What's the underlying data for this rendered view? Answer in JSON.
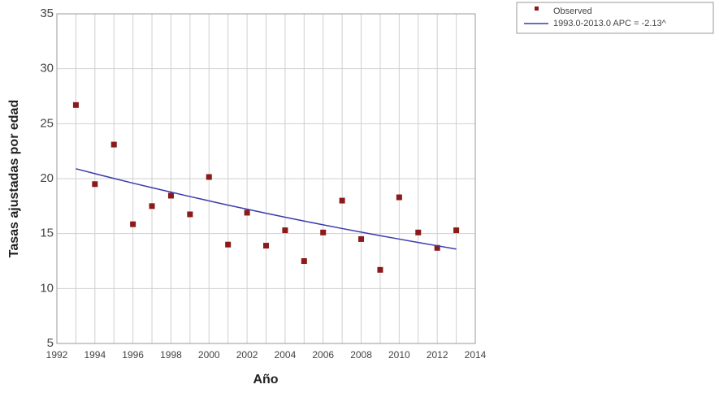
{
  "chart_data": {
    "type": "scatter",
    "xlabel": "Año",
    "ylabel": "Tasas ajustadas por edad",
    "x": [
      1993,
      1994,
      1995,
      1996,
      1997,
      1998,
      1999,
      2000,
      2001,
      2002,
      2003,
      2004,
      2005,
      2006,
      2007,
      2008,
      2009,
      2010,
      2011,
      2012,
      2013
    ],
    "series": [
      {
        "name": "Observed",
        "color": "#8b1a1a",
        "mode": "markers",
        "values": [
          26.7,
          19.5,
          23.1,
          15.85,
          17.5,
          18.45,
          16.75,
          20.15,
          14.0,
          16.9,
          13.9,
          15.3,
          12.5,
          15.1,
          18.0,
          14.5,
          11.7,
          18.3,
          15.1,
          13.7,
          15.3
        ]
      },
      {
        "name": "1993.0-2013.0 APC = -2.13^",
        "color": "#3a3ab0",
        "mode": "line",
        "values": [
          20.9,
          20.45,
          20.02,
          19.59,
          19.18,
          18.77,
          18.37,
          17.98,
          17.59,
          17.22,
          16.85,
          16.49,
          16.14,
          15.8,
          15.46,
          15.13,
          14.81,
          14.5,
          14.19,
          13.89,
          13.59
        ]
      }
    ],
    "xlim": [
      1992,
      2014
    ],
    "xticks": [
      1992,
      1994,
      1996,
      1998,
      2000,
      2002,
      2004,
      2006,
      2008,
      2010,
      2012,
      2014
    ],
    "xminorticks": [
      1993,
      1995,
      1997,
      1999,
      2001,
      2003,
      2005,
      2007,
      2009,
      2011,
      2013
    ],
    "ylim": [
      5,
      35
    ],
    "yticks": [
      5,
      10,
      15,
      20,
      25,
      30,
      35
    ],
    "grid": true,
    "legend": "outside-top-right"
  }
}
